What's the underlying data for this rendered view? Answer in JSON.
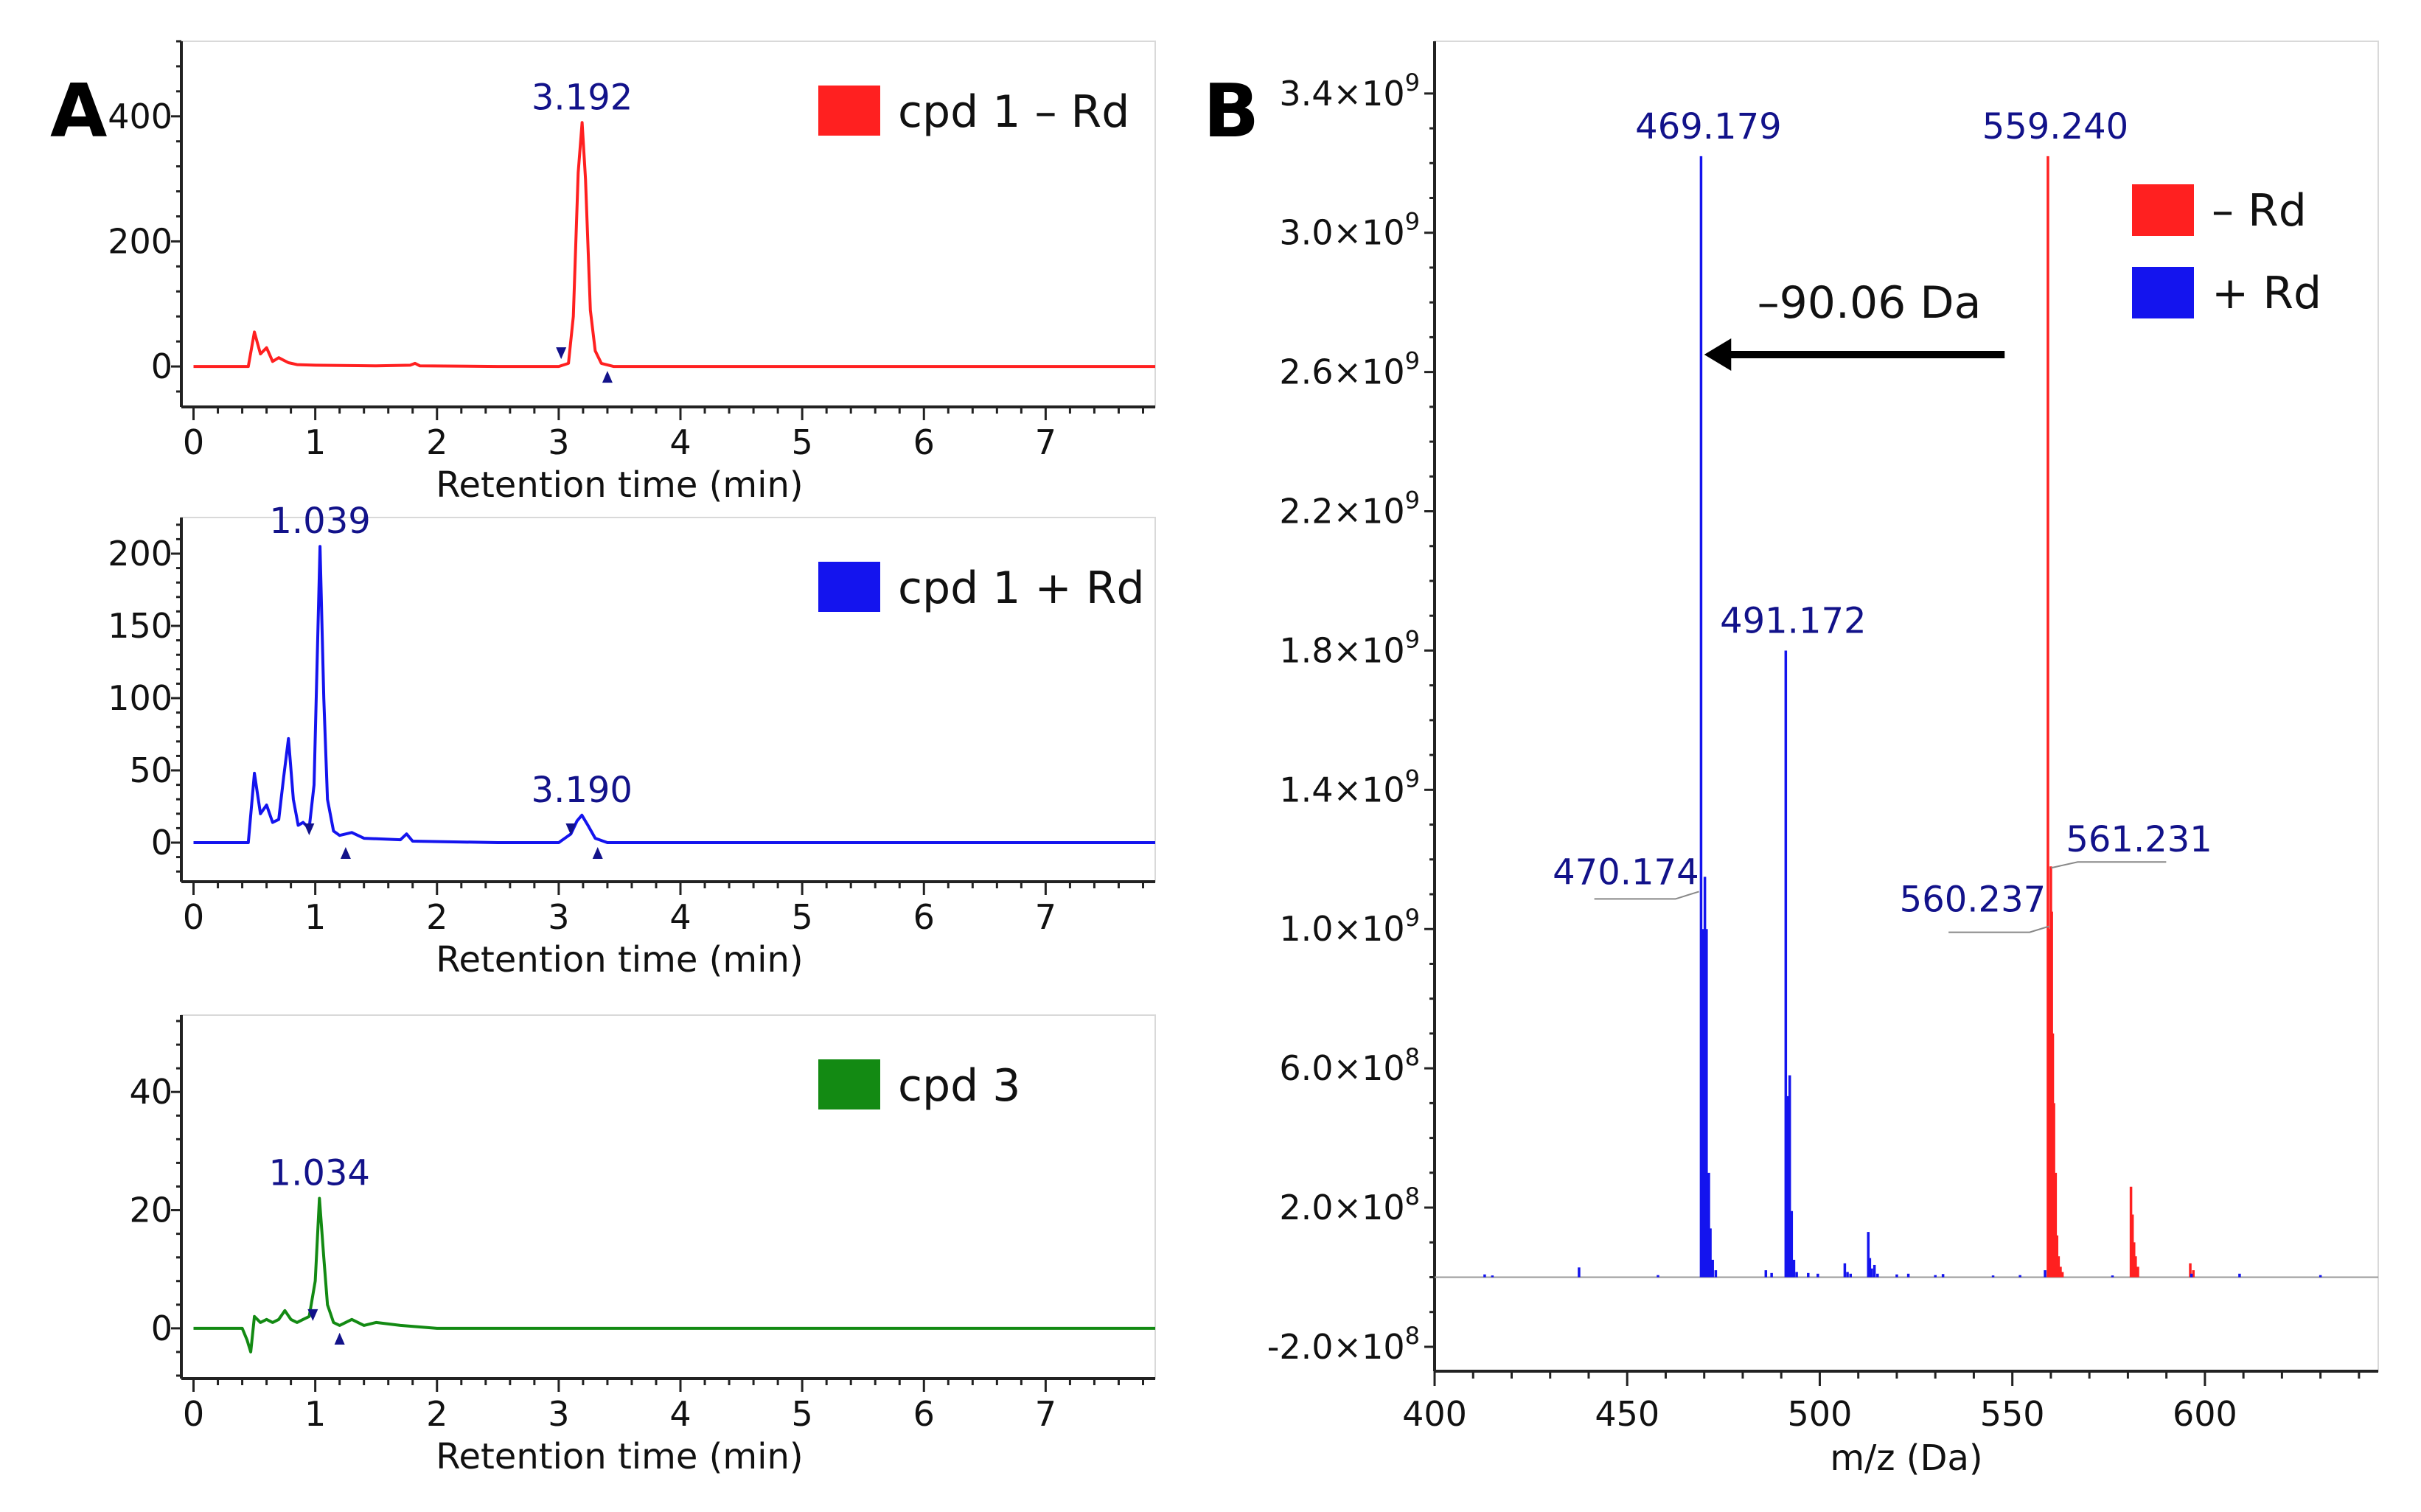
{
  "panel_labels": {
    "a": "A",
    "b": "B"
  },
  "colors": {
    "red": "#ff2020",
    "blue": "#1414ee",
    "green": "#138a13",
    "label": "#12128a"
  },
  "chart_data": [
    {
      "type": "line",
      "panel": "A",
      "title": "",
      "xlabel": "Retention time (min)",
      "ylabel": "",
      "xlim": [
        -0.1,
        7.9
      ],
      "ylim": [
        -60,
        520
      ],
      "xticks": [
        0,
        1,
        2,
        3,
        4,
        5,
        6,
        7
      ],
      "yticks": [
        0,
        200,
        400
      ],
      "legend": "cpd 1 – Rd",
      "series": [
        {
          "name": "cpd 1 – Rd",
          "color": "#ff2020",
          "x": [
            0,
            0.45,
            0.5,
            0.55,
            0.6,
            0.65,
            0.7,
            0.78,
            0.85,
            1.0,
            1.5,
            1.78,
            1.82,
            1.86,
            2.5,
            3.0,
            3.08,
            3.12,
            3.16,
            3.192,
            3.22,
            3.26,
            3.3,
            3.35,
            3.45,
            4.0,
            5.0,
            6.0,
            7.0,
            7.9
          ],
          "y": [
            0,
            0,
            55,
            20,
            30,
            8,
            14,
            6,
            3,
            2,
            1,
            2,
            5,
            1,
            0,
            0,
            5,
            80,
            310,
            390,
            300,
            90,
            25,
            5,
            0,
            0,
            0,
            0,
            0,
            0
          ]
        }
      ],
      "annotations": [
        {
          "x": 3.192,
          "y": 390,
          "text": "3.192"
        }
      ],
      "markers": [
        {
          "x": 3.02,
          "dir": "down"
        },
        {
          "x": 3.4,
          "dir": "up"
        }
      ]
    },
    {
      "type": "line",
      "panel": "A",
      "title": "",
      "xlabel": "Retention time (min)",
      "ylabel": "",
      "xlim": [
        -0.1,
        7.9
      ],
      "ylim": [
        -25,
        225
      ],
      "xticks": [
        0,
        1,
        2,
        3,
        4,
        5,
        6,
        7
      ],
      "yticks": [
        0,
        50,
        100,
        150,
        200
      ],
      "legend": "cpd 1 + Rd",
      "series": [
        {
          "name": "cpd 1 + Rd",
          "color": "#1414ee",
          "x": [
            0,
            0.45,
            0.5,
            0.55,
            0.6,
            0.65,
            0.7,
            0.74,
            0.78,
            0.82,
            0.86,
            0.9,
            0.95,
            0.99,
            1.039,
            1.07,
            1.1,
            1.15,
            1.2,
            1.3,
            1.4,
            1.7,
            1.75,
            1.8,
            2.5,
            3.0,
            3.1,
            3.15,
            3.19,
            3.24,
            3.3,
            3.4,
            4.0,
            5.0,
            6.0,
            7.0,
            7.9
          ],
          "y": [
            0,
            0,
            48,
            20,
            26,
            14,
            16,
            45,
            72,
            30,
            12,
            14,
            10,
            40,
            205,
            100,
            30,
            8,
            5,
            7,
            3,
            2,
            6,
            1,
            0,
            0,
            6,
            15,
            19,
            12,
            3,
            0,
            0,
            0,
            0,
            0,
            0
          ]
        }
      ],
      "annotations": [
        {
          "x": 1.039,
          "y": 205,
          "text": "1.039"
        },
        {
          "x": 3.19,
          "y": 19,
          "text": "3.190"
        }
      ],
      "markers": [
        {
          "x": 0.95,
          "dir": "down"
        },
        {
          "x": 1.25,
          "dir": "up"
        },
        {
          "x": 3.1,
          "dir": "down"
        },
        {
          "x": 3.32,
          "dir": "up"
        }
      ]
    },
    {
      "type": "line",
      "panel": "A",
      "title": "",
      "xlabel": "Retention time (min)",
      "ylabel": "",
      "xlim": [
        -0.1,
        7.9
      ],
      "ylim": [
        -8,
        53
      ],
      "xticks": [
        0,
        1,
        2,
        3,
        4,
        5,
        6,
        7
      ],
      "yticks": [
        0,
        20,
        40
      ],
      "legend": "cpd 3",
      "series": [
        {
          "name": "cpd 3",
          "color": "#138a13",
          "x": [
            0,
            0.4,
            0.44,
            0.47,
            0.5,
            0.55,
            0.6,
            0.65,
            0.7,
            0.75,
            0.8,
            0.85,
            0.9,
            0.95,
            1.0,
            1.034,
            1.07,
            1.1,
            1.15,
            1.2,
            1.3,
            1.4,
            1.5,
            1.7,
            2.0,
            3.0,
            4.0,
            5.0,
            6.0,
            7.0,
            7.9
          ],
          "y": [
            0,
            0,
            -2,
            -4,
            2,
            1,
            1.5,
            1,
            1.5,
            3,
            1.5,
            1,
            1.5,
            2,
            8,
            22,
            12,
            4,
            1,
            0.5,
            1.5,
            0.5,
            1,
            0.5,
            0,
            0,
            0,
            0,
            0,
            0,
            0
          ]
        }
      ],
      "annotations": [
        {
          "x": 1.034,
          "y": 22,
          "text": "1.034"
        }
      ],
      "markers": [
        {
          "x": 0.98,
          "dir": "down"
        },
        {
          "x": 1.2,
          "dir": "up"
        }
      ]
    },
    {
      "type": "bar",
      "panel": "B",
      "title": "",
      "xlabel": "m/z (Da)",
      "ylabel": "",
      "xlim": [
        400,
        645
      ],
      "ylim": [
        -270000000.0,
        3550000000.0
      ],
      "xticks": [
        400,
        450,
        500,
        550,
        600
      ],
      "yticks": [
        -200000000,
        200000000,
        600000000,
        1000000000,
        1400000000,
        1800000000,
        2200000000,
        2600000000,
        3000000000,
        3400000000
      ],
      "ytick_labels": [
        {
          "m": "-2.0",
          "e": "8"
        },
        {
          "m": "2.0",
          "e": "8"
        },
        {
          "m": "6.0",
          "e": "8"
        },
        {
          "m": "1.0",
          "e": "9"
        },
        {
          "m": "1.4",
          "e": "9"
        },
        {
          "m": "1.8",
          "e": "9"
        },
        {
          "m": "2.2",
          "e": "9"
        },
        {
          "m": "2.6",
          "e": "9"
        },
        {
          "m": "3.0",
          "e": "9"
        },
        {
          "m": "3.4",
          "e": "9"
        }
      ],
      "times_sign": "×10",
      "legend": [
        "– Rd",
        "+ Rd"
      ],
      "series": [
        {
          "name": "– Rd",
          "color": "#ff2020",
          "mz": [
            559.24,
            559.6,
            560.0,
            560.237,
            560.5,
            560.8,
            561.231,
            561.6,
            562.0,
            562.5,
            563.0,
            580.8,
            581.2,
            581.6,
            582.0,
            582.6,
            596.2,
            597.0
          ],
          "values": [
            3220000000,
            1000000000,
            1180000000,
            1050000000,
            700000000,
            500000000,
            300000000,
            120000000,
            60000000,
            30000000,
            15000000,
            260000000,
            180000000,
            100000000,
            60000000,
            30000000,
            40000000,
            20000000
          ]
        },
        {
          "name": "+ Rd",
          "color": "#1414ee",
          "mz": [
            413.0,
            415.0,
            437.5,
            458.0,
            469.179,
            469.6,
            470.174,
            470.6,
            471.2,
            471.6,
            472.2,
            473.0,
            486.0,
            487.5,
            491.172,
            491.6,
            492.2,
            492.7,
            493.3,
            494.0,
            497.0,
            499.5,
            506.5,
            507.2,
            508.0,
            512.6,
            513.0,
            513.5,
            514.2,
            515.0,
            520.0,
            523.0,
            530.0,
            532.0,
            545.0,
            552.0,
            558.5,
            576.0,
            596.5,
            609.0,
            630.0
          ],
          "values": [
            8000000,
            5000000,
            28000000,
            6000000,
            3220000000,
            1000000000,
            1150000000,
            1000000000,
            300000000,
            140000000,
            50000000,
            20000000,
            20000000,
            12000000,
            1800000000,
            520000000,
            580000000,
            190000000,
            50000000,
            15000000,
            12000000,
            10000000,
            40000000,
            15000000,
            10000000,
            130000000,
            55000000,
            25000000,
            35000000,
            10000000,
            8000000,
            10000000,
            6000000,
            9000000,
            5000000,
            6000000,
            20000000,
            5000000,
            10000000,
            10000000,
            6000000
          ]
        }
      ],
      "annotations": [
        {
          "mz": 469.179,
          "text": "469.179",
          "color": "#12128a"
        },
        {
          "mz": 559.24,
          "text": "559.240",
          "color": "#12128a"
        },
        {
          "mz": 491.172,
          "text": "491.172",
          "color": "#12128a"
        },
        {
          "mz": 470.174,
          "text": "470.174",
          "color": "#12128a"
        },
        {
          "mz": 560.237,
          "text": "560.237",
          "color": "#12128a"
        },
        {
          "mz": 561.231,
          "text": "561.231",
          "color": "#12128a"
        }
      ],
      "arrow_label": "–90.06 Da"
    }
  ]
}
